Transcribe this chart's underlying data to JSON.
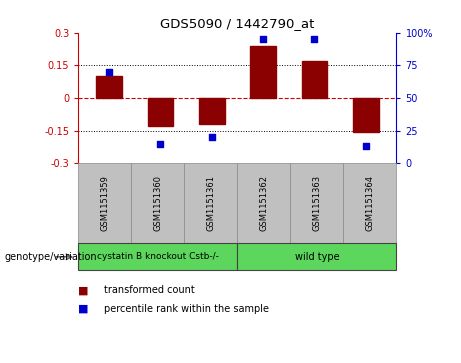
{
  "title": "GDS5090 / 1442790_at",
  "samples": [
    "GSM1151359",
    "GSM1151360",
    "GSM1151361",
    "GSM1151362",
    "GSM1151363",
    "GSM1151364"
  ],
  "bar_values": [
    0.1,
    -0.13,
    -0.12,
    0.24,
    0.17,
    -0.155
  ],
  "percentile_values": [
    70,
    15,
    20,
    95,
    95,
    13
  ],
  "bar_color": "#8B0000",
  "dot_color": "#0000CC",
  "ylim_left": [
    -0.3,
    0.3
  ],
  "ylim_right": [
    0,
    100
  ],
  "yticks_left": [
    -0.3,
    -0.15,
    0,
    0.15,
    0.3
  ],
  "yticks_right": [
    0,
    25,
    50,
    75,
    100
  ],
  "ytick_labels_left": [
    "-0.3",
    "-0.15",
    "0",
    "0.15",
    "0.3"
  ],
  "ytick_labels_right": [
    "0",
    "25",
    "50",
    "75",
    "100%"
  ],
  "group1_label": "cystatin B knockout Cstb-/-",
  "group2_label": "wild type",
  "group1_color": "#5CD65C",
  "group2_color": "#5CD65C",
  "group_label_text": "genotype/variation",
  "legend_bar_label": "transformed count",
  "legend_dot_label": "percentile rank within the sample",
  "bar_width": 0.5,
  "hline_color": "#CC0000",
  "dot_hline_color": "#CC0000",
  "grid_color": "#000000",
  "background_color": "#FFFFFF",
  "sample_box_color": "#C0C0C0",
  "left_tick_color": "#CC0000",
  "right_tick_color": "#0000CC"
}
